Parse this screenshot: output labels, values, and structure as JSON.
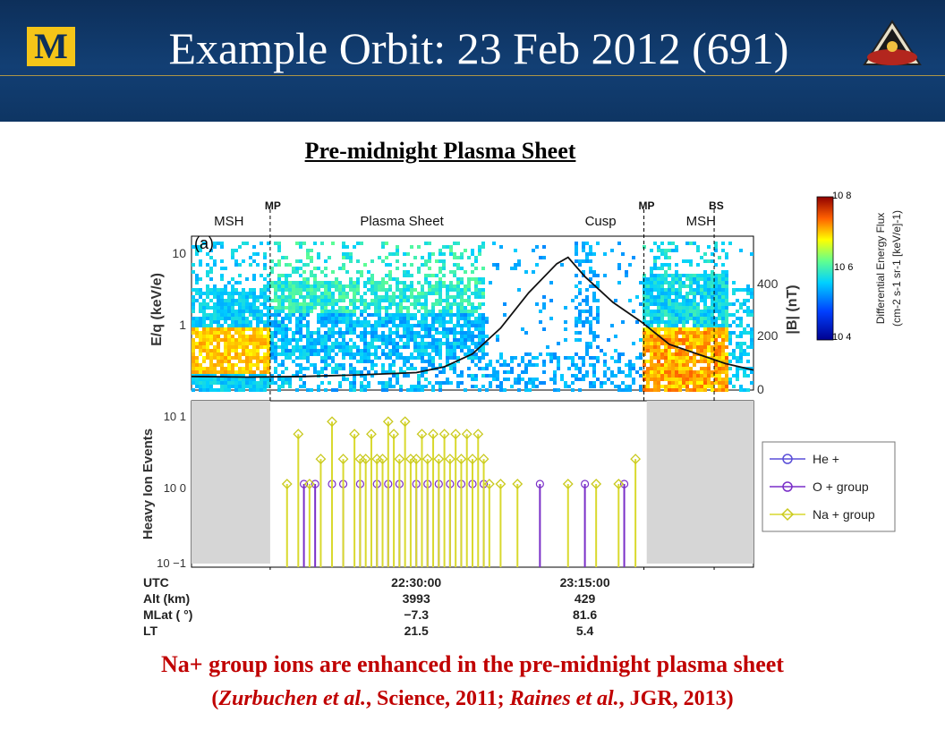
{
  "slide": {
    "title": "Example Orbit: 23 Feb 2012 (691)",
    "logo_letter": "M",
    "subtitle": "Pre-midnight Plasma Sheet",
    "caption_line1": "Na+ group ions are enhanced in the pre-midnight plasma sheet",
    "caption_line2": {
      "a1": "Zurbuchen et al.",
      "a2": ", Science, 2011; ",
      "b1": "Raines et al.",
      "b2": ", JGR, 2013)",
      "open": "("
    }
  },
  "colors": {
    "header": "#123f74",
    "accent": "#c9a640",
    "logo": "#f5c518",
    "caption": "#c00000",
    "he": "#5a4fd8",
    "o": "#7a2fc8",
    "na": "#d9d92e",
    "mask": "#d6d6d6"
  },
  "chart_data": [
    {
      "type": "heatmap",
      "panel_label": "(a)",
      "ylabel_left": "E/q (keV/e)",
      "ylabel_right": "|B| (nT)",
      "yticks_left": [
        "10",
        "1"
      ],
      "yticks_right": [
        "400",
        "200",
        "0"
      ],
      "regions": [
        {
          "label": "MSH",
          "x": 0.04
        },
        {
          "label": "Plasma Sheet",
          "x": 0.3
        },
        {
          "label": "Cusp",
          "x": 0.7
        },
        {
          "label": "MSH",
          "x": 0.88
        }
      ],
      "boundaries": [
        {
          "label": "MP",
          "x": 0.14
        },
        {
          "label": "MP",
          "x": 0.805
        },
        {
          "label": "BS",
          "x": 0.93
        }
      ],
      "colorbar": {
        "label": "Differential Energy Flux",
        "units": "(cm-2 s-1 sr-1 [keV/e]-1)",
        "ticks": [
          "10 8",
          "10 6",
          "10 4"
        ],
        "range_log10": [
          4,
          8
        ]
      },
      "field_B_nT": [
        {
          "t": 0.0,
          "b": 20
        },
        {
          "t": 0.1,
          "b": 18
        },
        {
          "t": 0.2,
          "b": 20
        },
        {
          "t": 0.3,
          "b": 25
        },
        {
          "t": 0.4,
          "b": 32
        },
        {
          "t": 0.45,
          "b": 50
        },
        {
          "t": 0.5,
          "b": 90
        },
        {
          "t": 0.55,
          "b": 170
        },
        {
          "t": 0.6,
          "b": 280
        },
        {
          "t": 0.65,
          "b": 370
        },
        {
          "t": 0.67,
          "b": 390
        },
        {
          "t": 0.7,
          "b": 330
        },
        {
          "t": 0.75,
          "b": 250
        },
        {
          "t": 0.8,
          "b": 190
        },
        {
          "t": 0.85,
          "b": 120
        },
        {
          "t": 0.9,
          "b": 90
        },
        {
          "t": 0.95,
          "b": 60
        },
        {
          "t": 1.0,
          "b": 40
        }
      ]
    },
    {
      "type": "scatter",
      "ylabel": "Heavy Ion Events",
      "yscale": "log",
      "yticks": [
        "10 1",
        "10 0",
        "10 −1"
      ],
      "ylim_log10": [
        -1,
        1
      ],
      "legend": [
        "He +",
        "O + group",
        "Na + group"
      ],
      "masked_intervals": [
        [
          0.0,
          0.14
        ],
        [
          0.81,
          1.0
        ]
      ],
      "o_group_x": [
        0.2,
        0.22,
        0.25,
        0.27,
        0.3,
        0.33,
        0.35,
        0.37,
        0.4,
        0.42,
        0.44,
        0.46,
        0.48,
        0.5,
        0.52,
        0.62,
        0.7,
        0.77
      ],
      "na_group": [
        {
          "x": 0.17,
          "v": 0
        },
        {
          "x": 0.19,
          "v": 0.6
        },
        {
          "x": 0.21,
          "v": 0
        },
        {
          "x": 0.23,
          "v": 0.3
        },
        {
          "x": 0.25,
          "v": 0.75
        },
        {
          "x": 0.27,
          "v": 0.3
        },
        {
          "x": 0.29,
          "v": 0.6
        },
        {
          "x": 0.3,
          "v": 0.3
        },
        {
          "x": 0.31,
          "v": 0.3
        },
        {
          "x": 0.32,
          "v": 0.6
        },
        {
          "x": 0.33,
          "v": 0.3
        },
        {
          "x": 0.34,
          "v": 0.3
        },
        {
          "x": 0.35,
          "v": 0.75
        },
        {
          "x": 0.36,
          "v": 0.6
        },
        {
          "x": 0.37,
          "v": 0.3
        },
        {
          "x": 0.38,
          "v": 0.75
        },
        {
          "x": 0.39,
          "v": 0.3
        },
        {
          "x": 0.4,
          "v": 0.3
        },
        {
          "x": 0.41,
          "v": 0.6
        },
        {
          "x": 0.42,
          "v": 0.3
        },
        {
          "x": 0.43,
          "v": 0.6
        },
        {
          "x": 0.44,
          "v": 0.3
        },
        {
          "x": 0.45,
          "v": 0.6
        },
        {
          "x": 0.46,
          "v": 0.3
        },
        {
          "x": 0.47,
          "v": 0.6
        },
        {
          "x": 0.48,
          "v": 0.3
        },
        {
          "x": 0.49,
          "v": 0.6
        },
        {
          "x": 0.5,
          "v": 0.3
        },
        {
          "x": 0.51,
          "v": 0.6
        },
        {
          "x": 0.52,
          "v": 0.3
        },
        {
          "x": 0.53,
          "v": 0
        },
        {
          "x": 0.55,
          "v": 0
        },
        {
          "x": 0.58,
          "v": 0
        },
        {
          "x": 0.67,
          "v": 0
        },
        {
          "x": 0.72,
          "v": 0
        },
        {
          "x": 0.76,
          "v": 0
        },
        {
          "x": 0.79,
          "v": 0.3
        }
      ],
      "x_annotations": [
        {
          "row": "UTC",
          "values": [
            "22:30:00",
            "23:15:00"
          ]
        },
        {
          "row": "Alt (km)",
          "values": [
            "3993",
            "429"
          ]
        },
        {
          "row": "MLat ( °)",
          "values": [
            "−7.3",
            "81.6"
          ]
        },
        {
          "row": "LT",
          "values": [
            "21.5",
            "5.4"
          ]
        }
      ],
      "x_annotation_positions": [
        0.4,
        0.7
      ]
    }
  ]
}
